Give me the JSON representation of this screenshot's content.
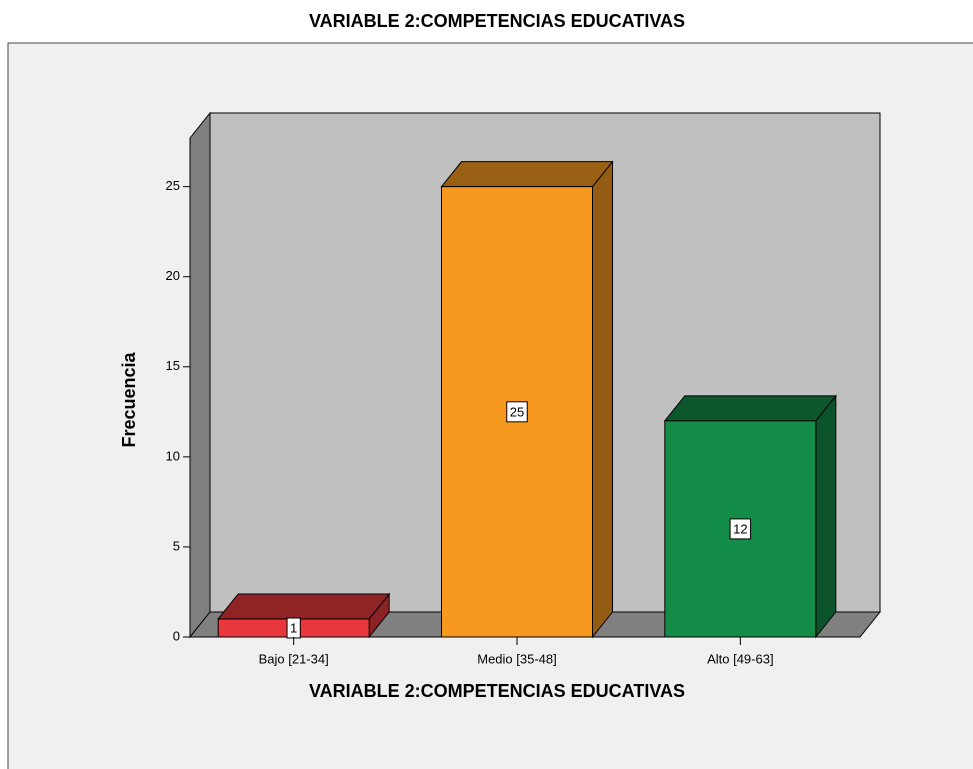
{
  "chart_data": {
    "type": "bar3d",
    "title": "VARIABLE 2:COMPETENCIAS EDUCATIVAS",
    "x_label": "VARIABLE 2:COMPETENCIAS EDUCATIVAS",
    "y_label": "Frecuencia",
    "categories": [
      "Bajo [21-34]",
      "Medio [35-48]",
      "Alto [49-63]"
    ],
    "values": [
      1,
      25,
      12
    ],
    "colors": [
      "#e8383d",
      "#f7991f",
      "#138c47"
    ],
    "ylim": [
      0,
      27.7
    ],
    "yticks": [
      0,
      5,
      10,
      15,
      20,
      25
    ]
  }
}
